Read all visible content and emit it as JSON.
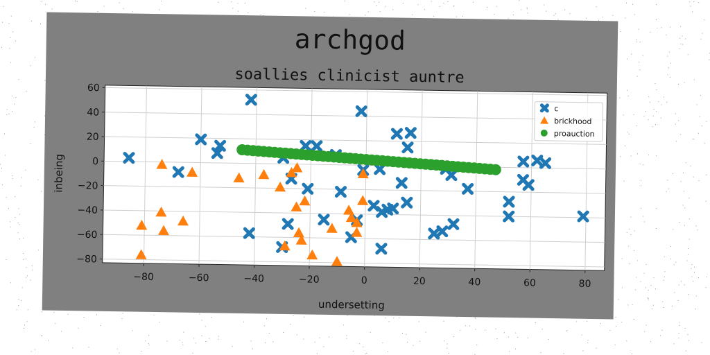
{
  "chart_data": {
    "type": "scatter",
    "title": "archgod",
    "subtitle": "soallies clinicist auntre",
    "xlabel": "undersetting",
    "ylabel": "inbeing",
    "xlim": [
      -95,
      87
    ],
    "ylim": [
      -83,
      62
    ],
    "xticks": [
      -80,
      -60,
      -40,
      -20,
      0,
      20,
      40,
      60,
      80
    ],
    "yticks": [
      -80,
      -60,
      -40,
      -20,
      0,
      20,
      40,
      60
    ],
    "grid": true,
    "legend_position": "top-right",
    "series": [
      {
        "name": "c",
        "marker": "x",
        "color": "#1f77b4",
        "points": [
          [
            -86,
            3
          ],
          [
            -68,
            -8
          ],
          [
            -60,
            19
          ],
          [
            -54,
            8
          ],
          [
            -53,
            14
          ],
          [
            -42,
            52
          ],
          [
            -42,
            -57
          ],
          [
            -30,
            5
          ],
          [
            -30,
            -68
          ],
          [
            -28,
            -49
          ],
          [
            -27,
            -12
          ],
          [
            -22,
            15
          ],
          [
            -21,
            -20
          ],
          [
            -18,
            15
          ],
          [
            -15,
            -45
          ],
          [
            -11,
            8
          ],
          [
            -9,
            -22
          ],
          [
            -5,
            -59
          ],
          [
            -3,
            -45
          ],
          [
            -2,
            44
          ],
          [
            -1,
            -4
          ],
          [
            3,
            -33
          ],
          [
            5,
            -3
          ],
          [
            6,
            -38
          ],
          [
            6,
            -68
          ],
          [
            8,
            -36
          ],
          [
            10,
            -35
          ],
          [
            11,
            26
          ],
          [
            13,
            -14
          ],
          [
            15,
            15
          ],
          [
            15,
            -30
          ],
          [
            16,
            27
          ],
          [
            25,
            -55
          ],
          [
            28,
            -53
          ],
          [
            29,
            -2
          ],
          [
            31,
            -7
          ],
          [
            32,
            -47
          ],
          [
            37,
            -18
          ],
          [
            52,
            -28
          ],
          [
            52,
            -40
          ],
          [
            57,
            5
          ],
          [
            57,
            -10
          ],
          [
            59,
            -14
          ],
          [
            62,
            6
          ],
          [
            65,
            4
          ],
          [
            79,
            -39
          ]
        ]
      },
      {
        "name": "brickhood",
        "marker": "triangle",
        "color": "#ff7f0e",
        "points": [
          [
            -81,
            -52
          ],
          [
            -81,
            -76
          ],
          [
            -74,
            -2
          ],
          [
            -74,
            -41
          ],
          [
            -73,
            -56
          ],
          [
            -66,
            -48
          ],
          [
            -63,
            -8
          ],
          [
            -46,
            -12
          ],
          [
            -37,
            -9
          ],
          [
            -31,
            -19
          ],
          [
            -29,
            -67
          ],
          [
            -27,
            -7
          ],
          [
            -25,
            -3
          ],
          [
            -25,
            -35
          ],
          [
            -24,
            -56
          ],
          [
            -23,
            -62
          ],
          [
            -22,
            -30
          ],
          [
            -19,
            -74
          ],
          [
            -12,
            -52
          ],
          [
            -10,
            -79
          ],
          [
            -6,
            -37
          ],
          [
            -5,
            -43
          ],
          [
            -3,
            -47
          ],
          [
            -3,
            -55
          ],
          [
            -1,
            -7
          ],
          [
            -1,
            -29
          ]
        ]
      },
      {
        "name": "proauction",
        "marker": "circle",
        "color": "#2ca02c",
        "line": {
          "x_start": -45,
          "y_start": 11,
          "x_end": 47,
          "y_end": -2,
          "count": 48
        }
      }
    ]
  }
}
